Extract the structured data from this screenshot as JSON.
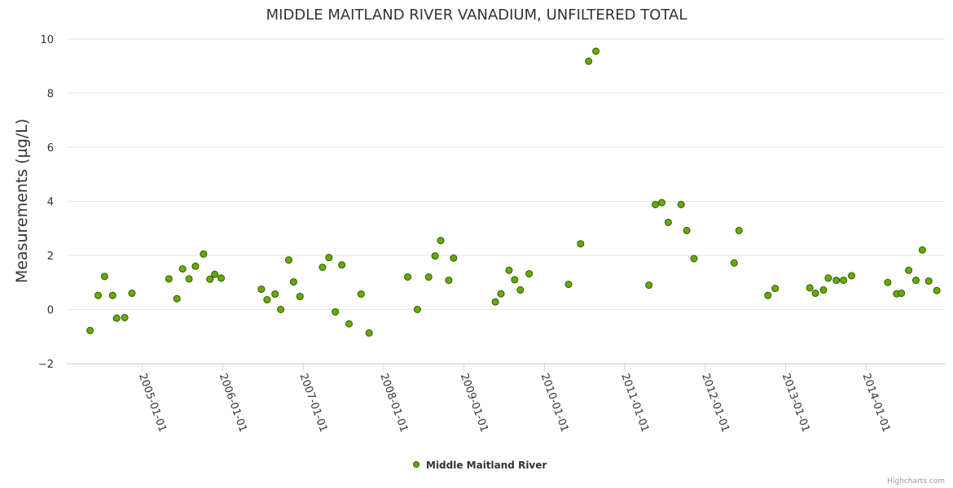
{
  "chart_data": {
    "type": "scatter",
    "title": "MIDDLE MAITLAND RIVER VANADIUM, UNFILTERED TOTAL",
    "xlabel": "",
    "ylabel": "Measurements (µg/L)",
    "ylim": [
      -2,
      10
    ],
    "yticks": [
      "−2",
      "0",
      "2",
      "4",
      "6",
      "8",
      "10"
    ],
    "xlim": [
      2004.06,
      2014.98
    ],
    "xticks": [
      {
        "label": "2005-01-01",
        "value": 2005.0
      },
      {
        "label": "2006-01-01",
        "value": 2006.0
      },
      {
        "label": "2007-01-01",
        "value": 2007.0
      },
      {
        "label": "2008-01-01",
        "value": 2008.0
      },
      {
        "label": "2009-01-01",
        "value": 2009.0
      },
      {
        "label": "2010-01-01",
        "value": 2010.0
      },
      {
        "label": "2011-01-01",
        "value": 2011.0
      },
      {
        "label": "2012-01-01",
        "value": 2012.0
      },
      {
        "label": "2013-01-01",
        "value": 2013.0
      },
      {
        "label": "2014-01-01",
        "value": 2014.0
      }
    ],
    "grid": true,
    "legend_position": "bottom-center",
    "color": "#66aa00",
    "border_color": "#2f5b00",
    "series": [
      {
        "name": "Middle Maitland River",
        "points": [
          [
            2004.35,
            -0.78
          ],
          [
            2004.45,
            0.52
          ],
          [
            2004.53,
            1.22
          ],
          [
            2004.63,
            0.52
          ],
          [
            2004.68,
            -0.32
          ],
          [
            2004.78,
            -0.3
          ],
          [
            2004.87,
            0.6
          ],
          [
            2005.33,
            1.13
          ],
          [
            2005.43,
            0.4
          ],
          [
            2005.5,
            1.5
          ],
          [
            2005.58,
            1.13
          ],
          [
            2005.66,
            1.6
          ],
          [
            2005.76,
            2.05
          ],
          [
            2005.84,
            1.12
          ],
          [
            2005.9,
            1.3
          ],
          [
            2005.98,
            1.16
          ],
          [
            2006.48,
            0.75
          ],
          [
            2006.55,
            0.36
          ],
          [
            2006.65,
            0.57
          ],
          [
            2006.72,
            0.0
          ],
          [
            2006.82,
            1.83
          ],
          [
            2006.88,
            1.02
          ],
          [
            2006.96,
            0.48
          ],
          [
            2007.24,
            1.56
          ],
          [
            2007.32,
            1.92
          ],
          [
            2007.4,
            -0.09
          ],
          [
            2007.48,
            1.65
          ],
          [
            2007.57,
            -0.53
          ],
          [
            2007.72,
            0.57
          ],
          [
            2007.82,
            -0.87
          ],
          [
            2008.3,
            1.2
          ],
          [
            2008.42,
            0.0
          ],
          [
            2008.56,
            1.2
          ],
          [
            2008.64,
            1.98
          ],
          [
            2008.71,
            2.55
          ],
          [
            2008.81,
            1.08
          ],
          [
            2008.87,
            1.9
          ],
          [
            2009.39,
            0.28
          ],
          [
            2009.46,
            0.58
          ],
          [
            2009.56,
            1.45
          ],
          [
            2009.63,
            1.1
          ],
          [
            2009.7,
            0.72
          ],
          [
            2009.81,
            1.32
          ],
          [
            2010.3,
            0.93
          ],
          [
            2010.45,
            2.43
          ],
          [
            2010.55,
            9.18
          ],
          [
            2010.64,
            9.55
          ],
          [
            2011.3,
            0.9
          ],
          [
            2011.38,
            3.88
          ],
          [
            2011.46,
            3.95
          ],
          [
            2011.54,
            3.22
          ],
          [
            2011.7,
            3.88
          ],
          [
            2011.77,
            2.92
          ],
          [
            2011.86,
            1.88
          ],
          [
            2012.36,
            1.72
          ],
          [
            2012.42,
            2.92
          ],
          [
            2012.78,
            0.52
          ],
          [
            2012.87,
            0.78
          ],
          [
            2013.3,
            0.8
          ],
          [
            2013.37,
            0.6
          ],
          [
            2013.47,
            0.72
          ],
          [
            2013.53,
            1.16
          ],
          [
            2013.63,
            1.08
          ],
          [
            2013.72,
            1.08
          ],
          [
            2013.82,
            1.25
          ],
          [
            2014.27,
            1.0
          ],
          [
            2014.38,
            0.58
          ],
          [
            2014.44,
            0.6
          ],
          [
            2014.53,
            1.45
          ],
          [
            2014.62,
            1.08
          ],
          [
            2014.7,
            2.2
          ],
          [
            2014.78,
            1.05
          ],
          [
            2014.88,
            0.7
          ]
        ]
      }
    ]
  },
  "credits": "Highcharts.com"
}
